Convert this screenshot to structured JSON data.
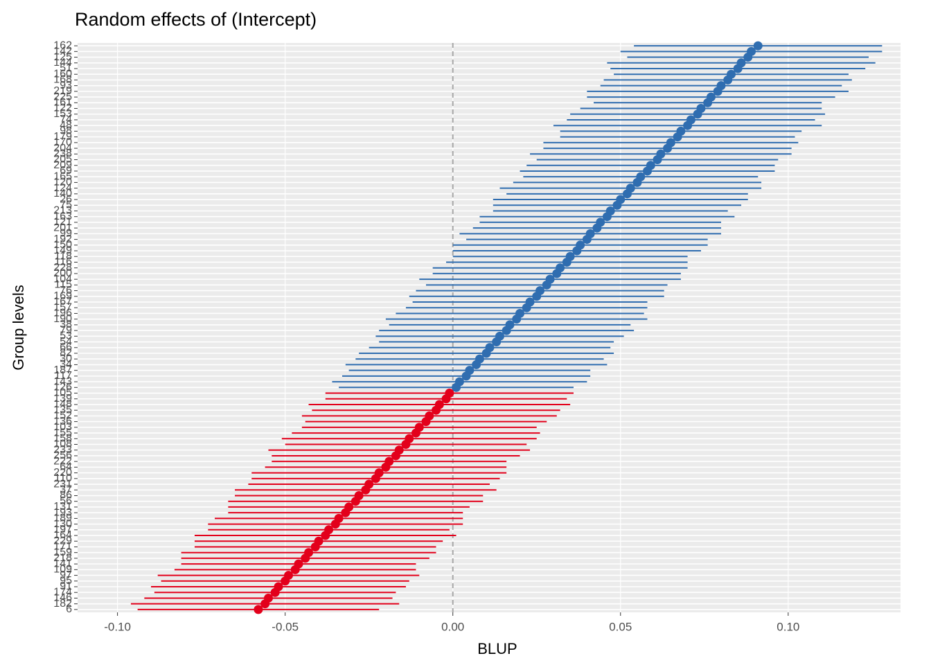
{
  "chart_data": {
    "type": "forest",
    "title": "Random effects of  (Intercept)",
    "x_label": "BLUP",
    "y_label": "Group levels",
    "categories": [
      "162",
      "142",
      "125",
      "144",
      "51",
      "160",
      "168",
      "93",
      "219",
      "225",
      "161",
      "122",
      "153",
      "74",
      "48",
      "98",
      "179",
      "170",
      "204",
      "238",
      "205",
      "209",
      "69",
      "165",
      "120",
      "124",
      "140",
      "26",
      "75",
      "213",
      "163",
      "121",
      "201",
      "99",
      "192",
      "150",
      "149",
      "118",
      "116",
      "228",
      "200",
      "104",
      "115",
      "76",
      "169",
      "167",
      "157",
      "196",
      "190",
      "38",
      "79",
      "53",
      "54",
      "66",
      "82",
      "30",
      "34",
      "187",
      "117",
      "143",
      "126",
      "105",
      "139",
      "148",
      "135",
      "152",
      "136",
      "103",
      "155",
      "158",
      "108",
      "233",
      "256",
      "222",
      "64",
      "220",
      "110",
      "231",
      "37",
      "86",
      "56",
      "131",
      "193",
      "189",
      "130",
      "197",
      "164",
      "229",
      "171",
      "159",
      "218",
      "141",
      "109",
      "97",
      "95",
      "91",
      "174",
      "146",
      "182",
      "6"
    ],
    "values": [
      0.091,
      0.089,
      0.088,
      0.086,
      0.085,
      0.083,
      0.082,
      0.08,
      0.079,
      0.077,
      0.076,
      0.074,
      0.073,
      0.071,
      0.07,
      0.068,
      0.067,
      0.065,
      0.064,
      0.062,
      0.061,
      0.059,
      0.058,
      0.056,
      0.055,
      0.053,
      0.052,
      0.05,
      0.049,
      0.047,
      0.046,
      0.044,
      0.043,
      0.041,
      0.04,
      0.038,
      0.037,
      0.035,
      0.034,
      0.032,
      0.031,
      0.029,
      0.028,
      0.026,
      0.025,
      0.023,
      0.022,
      0.02,
      0.019,
      0.017,
      0.016,
      0.014,
      0.013,
      0.011,
      0.01,
      0.008,
      0.007,
      0.005,
      0.004,
      0.002,
      0.001,
      -0.001,
      -0.002,
      -0.004,
      -0.005,
      -0.007,
      -0.008,
      -0.01,
      -0.011,
      -0.013,
      -0.014,
      -0.016,
      -0.017,
      -0.019,
      -0.02,
      -0.022,
      -0.023,
      -0.025,
      -0.026,
      -0.028,
      -0.029,
      -0.031,
      -0.032,
      -0.034,
      -0.035,
      -0.037,
      -0.038,
      -0.04,
      -0.041,
      -0.043,
      -0.044,
      -0.046,
      -0.047,
      -0.049,
      -0.05,
      -0.052,
      -0.053,
      -0.055,
      -0.056,
      -0.058
    ],
    "errors": [
      0.037,
      0.039,
      0.036,
      0.04,
      0.038,
      0.035,
      0.037,
      0.036,
      0.039,
      0.037,
      0.034,
      0.036,
      0.038,
      0.037,
      0.04,
      0.036,
      0.035,
      0.038,
      0.037,
      0.039,
      0.036,
      0.037,
      0.038,
      0.035,
      0.037,
      0.039,
      0.036,
      0.038,
      0.037,
      0.035,
      0.038,
      0.036,
      0.037,
      0.039,
      0.036,
      0.038,
      0.037,
      0.035,
      0.036,
      0.038,
      0.037,
      0.039,
      0.036,
      0.037,
      0.038,
      0.035,
      0.036,
      0.037,
      0.039,
      0.036,
      0.038,
      0.037,
      0.035,
      0.036,
      0.038,
      0.037,
      0.039,
      0.036,
      0.037,
      0.038,
      0.035,
      0.037,
      0.036,
      0.039,
      0.037,
      0.038,
      0.036,
      0.035,
      0.037,
      0.038,
      0.036,
      0.039,
      0.037,
      0.035,
      0.036,
      0.038,
      0.037,
      0.036,
      0.039,
      0.037,
      0.038,
      0.036,
      0.035,
      0.037,
      0.038,
      0.036,
      0.039,
      0.037,
      0.036,
      0.038,
      0.037,
      0.035,
      0.036,
      0.039,
      0.037,
      0.038,
      0.036,
      0.037,
      0.04,
      0.036
    ],
    "positive_color": "#2f6db0",
    "negative_color": "#e3001b",
    "xlim": [
      -0.1119,
      0.1335
    ],
    "xticks": [
      {
        "value": -0.1,
        "label": "-0.10"
      },
      {
        "value": -0.05,
        "label": "-0.05"
      },
      {
        "value": 0,
        "label": "0.00"
      },
      {
        "value": 0.05,
        "label": "0.05"
      },
      {
        "value": 0.1,
        "label": "0.10"
      }
    ],
    "reference_line": 0,
    "grid": true
  }
}
